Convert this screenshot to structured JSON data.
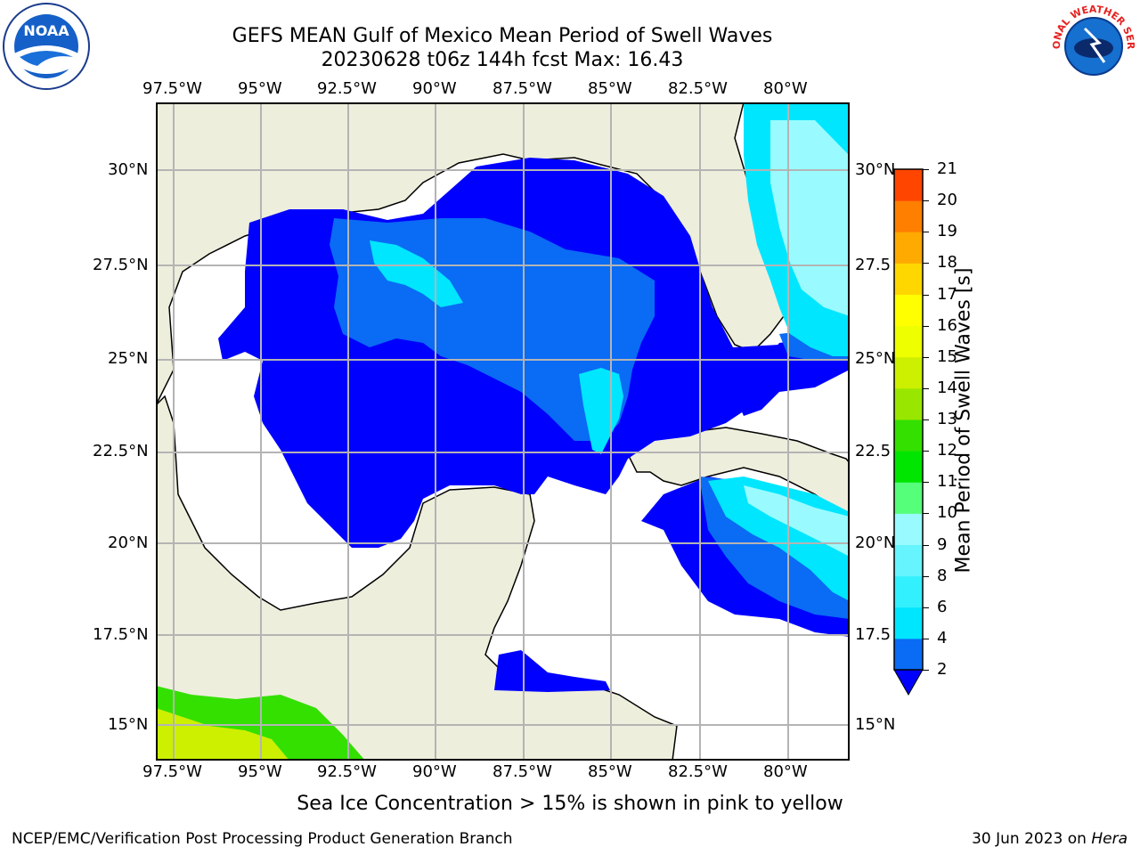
{
  "title": {
    "line1": "GEFS MEAN Gulf of Mexico Mean Period of Swell Waves",
    "line2": "20230628 t06z 144h fcst   Max: 16.43"
  },
  "axes": {
    "lon_ticks": [
      "97.5°W",
      "95°W",
      "92.5°W",
      "90°W",
      "87.5°W",
      "85°W",
      "82.5°W",
      "80°W"
    ],
    "lat_ticks_left": [
      "30°N",
      "27.5°N",
      "25°N",
      "22.5°N",
      "20°N",
      "17.5°N",
      "15°N"
    ],
    "lat_ticks_right": [
      "30°N",
      "27.5",
      "25°N",
      "22.5",
      "20°N",
      "17.5",
      "15°N"
    ]
  },
  "colorbar": {
    "label": "Mean Period of Swell Waves [s]",
    "ticks": [
      "2",
      "4",
      "6",
      "8",
      "9",
      "10",
      "11",
      "12",
      "13",
      "14",
      "15",
      "16",
      "17",
      "18",
      "19",
      "20",
      "21"
    ],
    "colors": [
      "#0a6bf5",
      "#00e6ff",
      "#33f0ff",
      "#66f5ff",
      "#99fbff",
      "#55ff7a",
      "#00e600",
      "#33e000",
      "#99e600",
      "#ccf000",
      "#eeff00",
      "#ffff00",
      "#ffd700",
      "#ffaa00",
      "#ff7f00",
      "#ff4500",
      "#ff0000"
    ],
    "under_color": "#0000ff"
  },
  "caption": "Sea Ice Concentration > 15% is shown in pink to yellow",
  "footer": {
    "left": "NCEP/EMC/Verification Post Processing Product Generation Branch",
    "right_date": "30 Jun 2023 on ",
    "right_host": "Hera"
  },
  "logos": {
    "left": "noaa-logo",
    "right": "national-weather-service-logo",
    "left_text": "NOAA",
    "right_text": "NATIONAL WEATHER SERVICE"
  },
  "map_colors": {
    "land": "#eeeedd",
    "ocean_no_data": "#ffffff",
    "deep_blue": "#0000ff",
    "mid_blue": "#0a6bf5",
    "cyan": "#00e6ff",
    "light_cyan": "#99fbff",
    "green": "#33e000",
    "yellow_green": "#ccf000",
    "grid": "#b4b4b4"
  }
}
